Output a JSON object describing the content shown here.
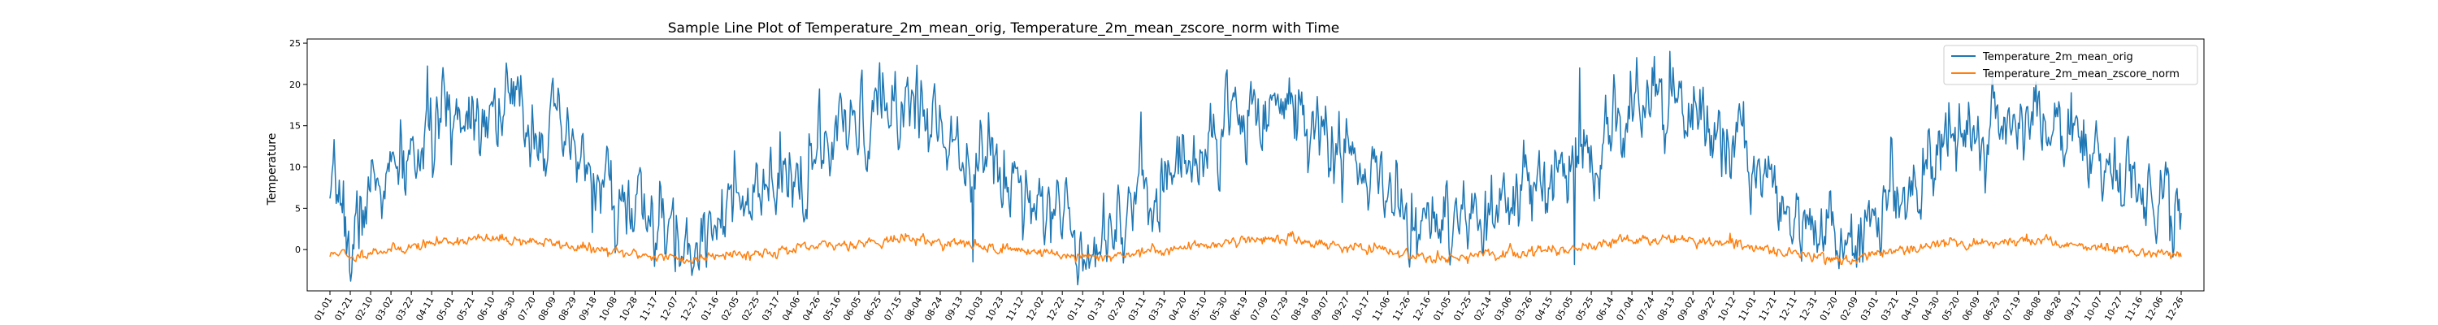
{
  "chart_data": {
    "type": "line",
    "title": "Sample Line Plot of Temperature_2m_mean_orig, Temperature_2m_mean_zscore_norm with Time",
    "xlabel": "",
    "ylabel": "Temperature",
    "ylim": [
      -5,
      25.5
    ],
    "yticks": [
      0,
      5,
      10,
      15,
      20,
      25
    ],
    "grid": false,
    "legend_position": "top-right",
    "x_tick_labels": [
      "01-01",
      "01-21",
      "02-10",
      "03-02",
      "03-22",
      "04-11",
      "05-01",
      "05-21",
      "06-10",
      "06-30",
      "07-20",
      "08-09",
      "08-29",
      "09-18",
      "10-08",
      "10-28",
      "11-17",
      "12-07",
      "12-27",
      "01-16",
      "02-05",
      "02-25",
      "03-17",
      "04-06",
      "04-26",
      "05-16",
      "06-05",
      "06-25",
      "07-15",
      "08-04",
      "08-24",
      "09-13",
      "10-03",
      "10-23",
      "11-12",
      "12-02",
      "12-22",
      "01-11",
      "01-31",
      "02-20",
      "03-11",
      "03-31",
      "04-20",
      "05-10",
      "05-30",
      "06-19",
      "07-09",
      "07-29",
      "08-18",
      "09-07",
      "09-27",
      "10-17",
      "11-06",
      "11-26",
      "12-16",
      "01-05",
      "01-25",
      "02-14",
      "03-06",
      "03-26",
      "04-15",
      "05-05",
      "05-25",
      "06-14",
      "07-04",
      "07-24",
      "08-13",
      "09-02",
      "09-22",
      "10-12",
      "11-01",
      "11-21",
      "12-11",
      "12-31",
      "01-20",
      "02-09",
      "03-01",
      "03-21",
      "04-10",
      "04-30",
      "05-20",
      "06-09",
      "06-29",
      "07-19",
      "08-08",
      "08-28",
      "09-17",
      "10-07",
      "10-27",
      "11-16",
      "12-06",
      "12-26"
    ],
    "anchors": [
      [
        0,
        3.0
      ],
      [
        10,
        8.0
      ],
      [
        20,
        -1.5
      ],
      [
        30,
        5.0
      ],
      [
        45,
        8.0
      ],
      [
        60,
        8.5
      ],
      [
        75,
        10.5
      ],
      [
        90,
        12.5
      ],
      [
        110,
        16.0
      ],
      [
        140,
        17.5
      ],
      [
        170,
        17.5
      ],
      [
        200,
        15.5
      ],
      [
        230,
        12.0
      ],
      [
        260,
        8.0
      ],
      [
        280,
        5.0
      ],
      [
        300,
        4.5
      ],
      [
        320,
        2.0
      ],
      [
        340,
        0.5
      ],
      [
        350,
        -1.5
      ],
      [
        365,
        4.0
      ],
      [
        380,
        6.0
      ],
      [
        400,
        4.0
      ],
      [
        420,
        6.5
      ],
      [
        450,
        8.5
      ],
      [
        480,
        12.0
      ],
      [
        510,
        14.5
      ],
      [
        540,
        17.0
      ],
      [
        560,
        18.5
      ],
      [
        580,
        15.5
      ],
      [
        610,
        13.5
      ],
      [
        640,
        10.0
      ],
      [
        670,
        8.0
      ],
      [
        700,
        5.0
      ],
      [
        720,
        2.0
      ],
      [
        730,
        1.0
      ],
      [
        750,
        3.0
      ],
      [
        780,
        6.0
      ],
      [
        810,
        9.0
      ],
      [
        840,
        12.0
      ],
      [
        870,
        16.0
      ],
      [
        900,
        18.0
      ],
      [
        925,
        17.5
      ],
      [
        950,
        15.0
      ],
      [
        980,
        11.0
      ],
      [
        1010,
        8.0
      ],
      [
        1040,
        4.0
      ],
      [
        1070,
        2.5
      ],
      [
        1095,
        1.5
      ],
      [
        1110,
        3.0
      ],
      [
        1130,
        4.5
      ],
      [
        1160,
        7.0
      ],
      [
        1200,
        10.0
      ],
      [
        1230,
        14.5
      ],
      [
        1260,
        17.0
      ],
      [
        1290,
        18.0
      ],
      [
        1310,
        16.5
      ],
      [
        1340,
        14.0
      ],
      [
        1370,
        10.5
      ],
      [
        1400,
        7.0
      ],
      [
        1430,
        3.5
      ],
      [
        1460,
        -1.0
      ],
      [
        1480,
        3.5
      ],
      [
        1500,
        6.0
      ],
      [
        1530,
        9.5
      ],
      [
        1560,
        13.0
      ],
      [
        1590,
        15.0
      ],
      [
        1620,
        16.0
      ],
      [
        1650,
        15.5
      ],
      [
        1680,
        13.5
      ],
      [
        1710,
        10.5
      ],
      [
        1740,
        6.5
      ],
      [
        1760,
        6.0
      ],
      [
        1780,
        5.0
      ]
    ],
    "spikes": [
      [
        290,
        2.5
      ],
      [
        620,
        -1.5
      ],
      [
        1000,
        7.5
      ],
      [
        1200,
        -1.8
      ],
      [
        1205,
        22.0
      ],
      [
        1292,
        24.0
      ]
    ],
    "series": [
      {
        "name": "Temperature_2m_mean_orig",
        "color": "#1f77b4",
        "n_points": 1786,
        "noise": 2.2,
        "seed": 7,
        "kind": "orig"
      },
      {
        "name": "Temperature_2m_mean_zscore_norm",
        "color": "#ff7f0e",
        "n_points": 1786,
        "noise": 0.28,
        "seed": 11,
        "kind": "norm"
      }
    ]
  }
}
